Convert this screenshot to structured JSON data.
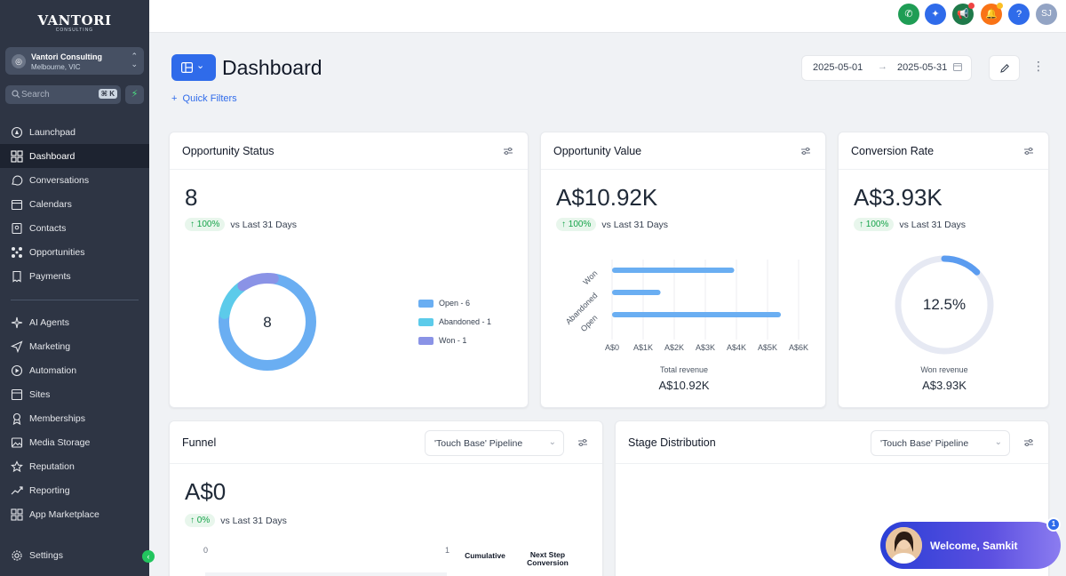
{
  "brand": {
    "name": "VANTORI",
    "sub": "CONSULTING"
  },
  "account": {
    "name": "Vantori Consulting",
    "location": "Melbourne, VIC"
  },
  "search": {
    "placeholder": "Search",
    "shortcut": "⌘ K"
  },
  "nav_primary": [
    {
      "label": "Launchpad",
      "icon": "rocket-icon"
    },
    {
      "label": "Dashboard",
      "icon": "grid-icon",
      "active": true
    },
    {
      "label": "Conversations",
      "icon": "chat-icon"
    },
    {
      "label": "Calendars",
      "icon": "calendar-icon"
    },
    {
      "label": "Contacts",
      "icon": "contacts-icon"
    },
    {
      "label": "Opportunities",
      "icon": "pipeline-icon"
    },
    {
      "label": "Payments",
      "icon": "receipt-icon"
    }
  ],
  "nav_secondary": [
    {
      "label": "AI Agents",
      "icon": "sparkle-icon"
    },
    {
      "label": "Marketing",
      "icon": "send-icon"
    },
    {
      "label": "Automation",
      "icon": "automation-icon"
    },
    {
      "label": "Sites",
      "icon": "sites-icon"
    },
    {
      "label": "Memberships",
      "icon": "award-icon"
    },
    {
      "label": "Media Storage",
      "icon": "image-icon"
    },
    {
      "label": "Reputation",
      "icon": "star-icon"
    },
    {
      "label": "Reporting",
      "icon": "trend-icon"
    },
    {
      "label": "App Marketplace",
      "icon": "apps-icon"
    }
  ],
  "settings_label": "Settings",
  "topbar": {
    "user_initials": "SJ",
    "colors": {
      "phone": "#1f9d55",
      "magic": "#2f6bea",
      "megaphone": "#1f7a4a",
      "bell": "#f97316",
      "help": "#2f6bea"
    }
  },
  "header": {
    "title": "Dashboard",
    "quick_filters": "Quick Filters",
    "date_start": "2025-05-01",
    "date_end": "2025-05-31"
  },
  "cards": {
    "status": {
      "title": "Opportunity Status",
      "value": "8",
      "pct": "100%",
      "vs": "vs Last 31 Days",
      "donut_center": "8",
      "legend": [
        "Open - 6",
        "Abandoned - 1",
        "Won - 1"
      ],
      "colors": [
        "#6aaef2",
        "#5ccbea",
        "#8a93e6"
      ]
    },
    "value": {
      "title": "Opportunity Value",
      "value": "A$10.92K",
      "pct": "100%",
      "vs": "vs Last 31 Days",
      "total_label": "Total revenue",
      "total_value": "A$10.92K"
    },
    "conversion": {
      "title": "Conversion Rate",
      "value": "A$3.93K",
      "pct": "100%",
      "vs": "vs Last 31 Days",
      "gauge_center": "12.5%",
      "gauge_fraction": 0.125,
      "won_label": "Won revenue",
      "won_value": "A$3.93K"
    },
    "funnel": {
      "title": "Funnel",
      "pipeline": "'Touch Base' Pipeline",
      "value": "A$0",
      "pct": "0%",
      "vs": "vs Last 31 Days",
      "axis_min": "0",
      "axis_max": "1",
      "col1": "Cumulative",
      "col2": "Next Step",
      "col3": "Conversion"
    },
    "stage": {
      "title": "Stage Distribution",
      "pipeline": "'Touch Base' Pipeline"
    }
  },
  "chart_data": [
    {
      "type": "pie",
      "categories": [
        "Open",
        "Abandoned",
        "Won"
      ],
      "values": [
        6,
        1,
        1
      ],
      "title": ""
    },
    {
      "type": "bar",
      "orientation": "horizontal",
      "categories": [
        "Won",
        "Abandoned",
        "Open"
      ],
      "values": [
        3930,
        1560,
        5430
      ],
      "xticks": [
        "A$0",
        "A$1K",
        "A$2K",
        "A$3K",
        "A$4K",
        "A$5K",
        "A$6K"
      ],
      "xlim": [
        0,
        6000
      ],
      "title": "",
      "xlabel": "",
      "ylabel": "",
      "grid": true,
      "color": "#6aaef2"
    }
  ],
  "welcome": {
    "text": "Welcome, Samkit",
    "badge": "1"
  }
}
